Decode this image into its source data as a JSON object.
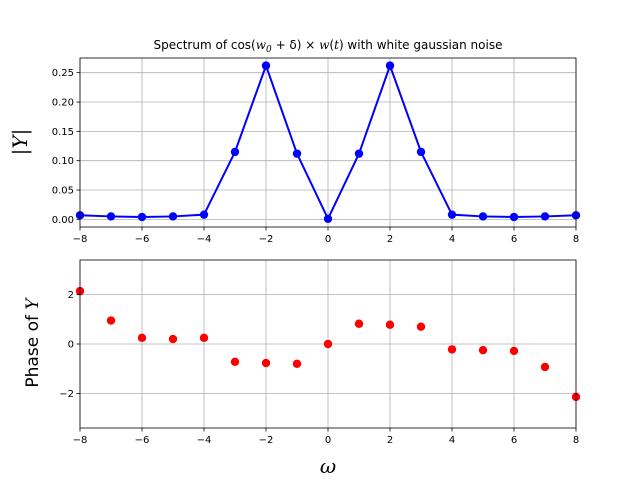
{
  "chart_data": [
    {
      "type": "line",
      "title_prefix": "Spectrum of cos(",
      "title_math": "w",
      "title_sub": "0",
      "title_middle": " + δ) × ",
      "title_math2": "w",
      "title_mid2": "(",
      "title_math3": "t",
      "title_suffix": ") with white gaussian noise",
      "ylabel": "|Y|",
      "xlim": [
        -8,
        8
      ],
      "ylim": [
        -0.013,
        0.275
      ],
      "x_ticks": [
        -8,
        -6,
        -4,
        -2,
        0,
        2,
        4,
        6,
        8
      ],
      "y_ticks": [
        0.0,
        0.05,
        0.1,
        0.15,
        0.2,
        0.25
      ],
      "y_tick_labels": [
        "0.00",
        "0.05",
        "0.10",
        "0.15",
        "0.20",
        "0.25"
      ],
      "grid": true,
      "color": "#0000ff",
      "series": [
        {
          "x": [
            -8,
            -7,
            -6,
            -5,
            -4,
            -3,
            -2,
            -1,
            0,
            1,
            2,
            3,
            4,
            5,
            6,
            7,
            8
          ],
          "values": [
            0.007,
            0.005,
            0.004,
            0.005,
            0.008,
            0.115,
            0.262,
            0.112,
            0.001,
            0.112,
            0.262,
            0.115,
            0.008,
            0.005,
            0.004,
            0.005,
            0.007
          ]
        }
      ]
    },
    {
      "type": "scatter",
      "xlabel": "ω",
      "ylabel": "Phase of Y",
      "ylabel_prefix": "Phase of ",
      "ylabel_math": "Y",
      "xlim": [
        -8,
        8
      ],
      "ylim": [
        -3.4,
        3.4
      ],
      "x_ticks": [
        -8,
        -6,
        -4,
        -2,
        0,
        2,
        4,
        6,
        8
      ],
      "y_ticks": [
        -2,
        0,
        2
      ],
      "y_tick_labels": [
        "−2",
        "0",
        "2"
      ],
      "grid": true,
      "color": "#ff0000",
      "series": [
        {
          "x": [
            -8,
            -7,
            -6,
            -5,
            -4,
            -3,
            -2,
            -1,
            0,
            1,
            2,
            3,
            4,
            5,
            6,
            7,
            8
          ],
          "values": [
            2.14,
            0.95,
            0.25,
            0.2,
            0.25,
            -0.72,
            -0.77,
            -0.8,
            0.0,
            0.82,
            0.78,
            0.7,
            -0.22,
            -0.25,
            -0.28,
            -0.93,
            -2.14
          ]
        }
      ]
    }
  ]
}
